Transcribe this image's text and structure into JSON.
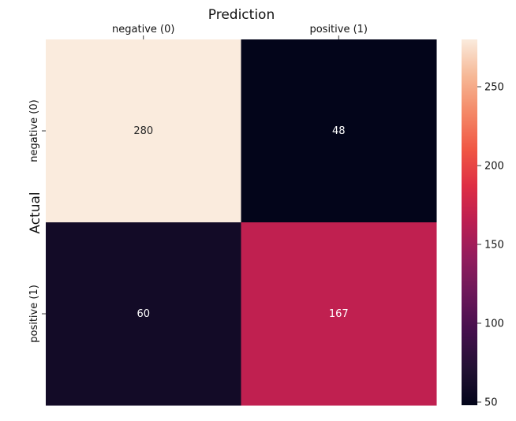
{
  "chart_data": {
    "type": "heatmap",
    "title": "Prediction",
    "xlabel": "",
    "ylabel": "Actual",
    "x_categories": [
      "negative (0)",
      "positive (1)"
    ],
    "y_categories": [
      "negative (0)",
      "positive (1)"
    ],
    "values": [
      [
        280,
        48
      ],
      [
        60,
        167
      ]
    ],
    "colorbar": {
      "min": 48,
      "max": 280,
      "ticks": [
        50,
        100,
        150,
        200,
        250
      ]
    },
    "colormap": "rocket",
    "x_tick_position": "top"
  }
}
